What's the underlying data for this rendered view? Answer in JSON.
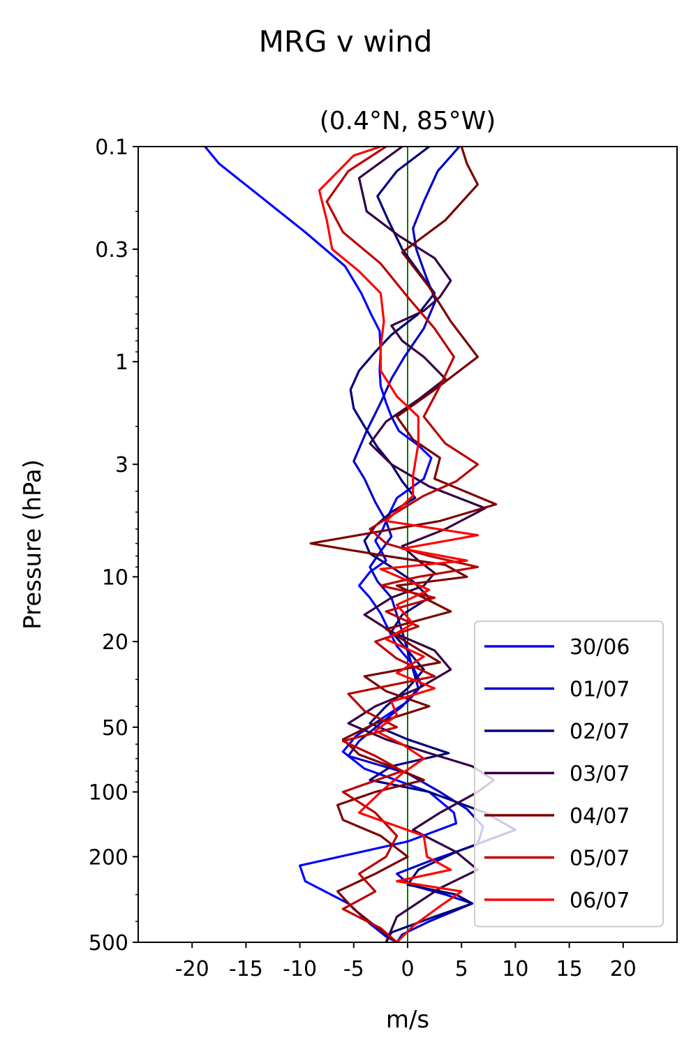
{
  "figure": {
    "suptitle": "MRG v wind"
  },
  "chart_data": {
    "type": "line",
    "title": "(0.4°N, 85°W)",
    "xlabel": "m/s",
    "ylabel": "Pressure (hPa)",
    "xlim": [
      -25,
      25
    ],
    "ylim": [
      500,
      0.1
    ],
    "yscale": "log",
    "xticks": [
      -20,
      -15,
      -10,
      -5,
      0,
      5,
      10,
      15,
      20
    ],
    "xtick_labels": [
      "-20",
      "-15",
      "-10",
      "-5",
      "0",
      "5",
      "10",
      "15",
      "20"
    ],
    "yticks": [
      0.1,
      0.3,
      1,
      3,
      10,
      20,
      50,
      100,
      200,
      500
    ],
    "ytick_labels": [
      "0.1",
      "0.3",
      "1",
      "3",
      "10",
      "20",
      "50",
      "100",
      "200",
      "500"
    ],
    "reference_line": {
      "x": 0,
      "color": "#007700"
    },
    "legend_position": "lower-right",
    "grid": false,
    "series": [
      {
        "name": "30/06",
        "color": "#0000ff",
        "x": [
          -18.8,
          -17.5,
          -13.7,
          -9.5,
          -5.8,
          -4.3,
          -3.4,
          -2.6,
          -2.5,
          -2.6,
          -2.5,
          -2.0,
          -1.5,
          -0.8,
          1.0,
          2.2,
          1.5,
          -1.0,
          -1.8,
          -2.3,
          -3.0,
          -2.5,
          -2.0,
          -3.5,
          -4.5,
          -3.5,
          -2.5,
          -1.8,
          -1.0,
          0.3,
          1.3,
          0.0,
          -2.5,
          -4.8,
          -6.0,
          -4.0,
          2.0,
          4.3,
          4.5,
          0.0,
          -10.0,
          -9.5,
          -5.5,
          -3.5,
          -2.0,
          -1.0
        ],
        "p": [
          0.1,
          0.12,
          0.17,
          0.25,
          0.36,
          0.48,
          0.6,
          0.72,
          0.9,
          1.1,
          1.3,
          1.55,
          1.8,
          2.1,
          2.45,
          2.8,
          3.5,
          4.3,
          5.2,
          6.0,
          6.8,
          7.5,
          8.4,
          9.5,
          11.0,
          12.5,
          14.8,
          17.5,
          21.0,
          25.0,
          32.0,
          38.0,
          46.0,
          55.0,
          65.0,
          78.0,
          100.0,
          125.0,
          140.0,
          170.0,
          220.0,
          260.0,
          330.0,
          410.0,
          470.0,
          500.0
        ]
      },
      {
        "name": "01/07",
        "color": "#0000cc",
        "x": [
          4.8,
          2.8,
          1.5,
          0.5,
          0.8,
          1.7,
          2.6,
          1.5,
          -0.3,
          -1.5,
          -2.5,
          -3.8,
          -5.0,
          -4.0,
          -3.0,
          -2.0,
          -1.5,
          -2.5,
          -3.5,
          -2.8,
          -1.5,
          -1.0,
          -0.5,
          0.0,
          0.5,
          1.0,
          -0.5,
          -2.5,
          -4.5,
          -5.5,
          0.0,
          3.0,
          5.5,
          7.0,
          6.5,
          2.0,
          -1.0,
          0.2,
          3.5,
          6.0,
          2.0,
          -0.5,
          -1.0
        ],
        "p": [
          0.1,
          0.13,
          0.18,
          0.24,
          0.3,
          0.4,
          0.52,
          0.7,
          0.95,
          1.2,
          1.55,
          2.1,
          2.9,
          3.5,
          4.5,
          5.5,
          6.5,
          7.6,
          9.0,
          10.5,
          12.5,
          15.0,
          18.0,
          22.0,
          27.0,
          33.0,
          40.0,
          48.0,
          58.0,
          68.0,
          82.0,
          100.0,
          120.0,
          145.0,
          175.0,
          210.0,
          240.0,
          270.0,
          300.0,
          330.0,
          400.0,
          460.0,
          500.0
        ]
      },
      {
        "name": "02/07",
        "color": "#00007a",
        "x": [
          2.0,
          -1.0,
          -2.8,
          -1.8,
          -0.5,
          1.0,
          2.5,
          1.0,
          -1.5,
          -3.0,
          -4.5,
          -5.3,
          -5.0,
          -4.0,
          -2.8,
          -1.5,
          -0.5,
          0.7,
          -1.5,
          -3.0,
          -4.0,
          -3.5,
          -1.5,
          0.5,
          2.0,
          -0.5,
          -1.5,
          0.0,
          1.5,
          0.0,
          -2.0,
          -3.5,
          0.0,
          3.8,
          -1.5,
          -3.5,
          2.0,
          7.2,
          10.0,
          4.5,
          1.0,
          0.0,
          4.5,
          6.0,
          2.5,
          -1.5,
          -2.0
        ],
        "p": [
          0.1,
          0.13,
          0.17,
          0.22,
          0.3,
          0.38,
          0.48,
          0.6,
          0.75,
          0.9,
          1.1,
          1.35,
          1.65,
          2.0,
          2.5,
          3.0,
          3.6,
          4.3,
          5.0,
          5.8,
          6.8,
          7.8,
          9.0,
          10.5,
          12.5,
          15.0,
          18.0,
          22.0,
          27.0,
          33.0,
          40.0,
          48.0,
          57.0,
          66.0,
          76.0,
          88.0,
          100.0,
          125.0,
          150.0,
          190.0,
          230.0,
          270.0,
          300.0,
          330.0,
          380.0,
          450.0,
          500.0
        ]
      },
      {
        "name": "03/07",
        "color": "#330044",
        "x": [
          -0.5,
          -4.5,
          -3.8,
          -0.8,
          2.5,
          4.0,
          3.0,
          1.5,
          -1.5,
          -0.5,
          1.5,
          3.5,
          1.0,
          -2.0,
          -3.5,
          -1.5,
          2.0,
          7.2,
          3.5,
          -0.5,
          1.0,
          2.5,
          1.5,
          -1.5,
          -4.0,
          -1.5,
          2.5,
          4.0,
          1.0,
          -3.0,
          -5.5,
          -2.0,
          2.0,
          6.0,
          8.0,
          6.5,
          3.0,
          0.5,
          4.5,
          6.5,
          3.0,
          -1.0,
          -2.0
        ],
        "p": [
          0.1,
          0.14,
          0.2,
          0.26,
          0.33,
          0.42,
          0.5,
          0.58,
          0.68,
          0.8,
          0.95,
          1.2,
          1.5,
          1.9,
          2.4,
          3.0,
          3.8,
          4.8,
          6.0,
          7.2,
          8.4,
          9.6,
          11.0,
          12.5,
          15.0,
          18.0,
          22.0,
          27.0,
          33.0,
          40.0,
          48.0,
          57.0,
          66.0,
          76.0,
          88.0,
          100.0,
          125.0,
          150.0,
          190.0,
          230.0,
          280.0,
          380.0,
          500.0
        ]
      },
      {
        "name": "04/07",
        "color": "#7a0000",
        "x": [
          5.0,
          5.5,
          6.5,
          3.5,
          -0.5,
          2.0,
          4.0,
          6.5,
          2.5,
          -1.0,
          0.5,
          3.0,
          2.5,
          8.2,
          3.0,
          -9.0,
          -2.0,
          3.5,
          5.5,
          -1.0,
          1.5,
          4.0,
          -2.0,
          0.5,
          3.0,
          -4.0,
          -2.0,
          2.0,
          -3.0,
          -6.0,
          -4.5,
          -1.0,
          1.5,
          -3.0,
          -6.5,
          -6.0,
          -2.5,
          0.0,
          -3.0,
          -6.5,
          -5.0,
          -3.0,
          -1.0
        ],
        "p": [
          0.1,
          0.12,
          0.15,
          0.22,
          0.31,
          0.45,
          0.65,
          0.95,
          1.35,
          1.8,
          2.3,
          2.8,
          3.5,
          4.6,
          5.5,
          7.0,
          8.0,
          8.8,
          10.0,
          11.0,
          12.5,
          14.5,
          17.5,
          21.0,
          25.0,
          29.0,
          34.0,
          40.0,
          48.0,
          57.0,
          67.0,
          78.0,
          88.0,
          100.0,
          115.0,
          135.0,
          160.0,
          200.0,
          240.0,
          290.0,
          350.0,
          420.0,
          500.0
        ]
      },
      {
        "name": "05/07",
        "color": "#bb0000",
        "x": [
          -2.0,
          -5.5,
          -7.5,
          -6.0,
          -2.5,
          0.0,
          2.5,
          4.3,
          3.0,
          1.5,
          3.5,
          6.5,
          4.5,
          1.5,
          -1.0,
          -3.5,
          -2.0,
          2.0,
          6.5,
          1.0,
          -2.5,
          2.5,
          -2.0,
          1.0,
          -3.0,
          -1.0,
          2.5,
          -5.5,
          -4.0,
          -1.0,
          -6.0,
          -3.0,
          -0.5,
          -6.0,
          -3.0,
          -1.0,
          -2.0,
          -4.5,
          -3.0,
          -6.0,
          -2.5,
          -1.0
        ],
        "p": [
          0.1,
          0.13,
          0.18,
          0.25,
          0.35,
          0.5,
          0.7,
          0.95,
          1.3,
          1.8,
          2.4,
          3.0,
          3.6,
          4.2,
          5.0,
          6.0,
          7.0,
          8.0,
          9.0,
          10.0,
          11.0,
          12.5,
          14.5,
          17.0,
          20.0,
          24.0,
          29.0,
          35.0,
          42.0,
          50.0,
          58.0,
          68.0,
          80.0,
          100.0,
          125.0,
          160.0,
          200.0,
          240.0,
          290.0,
          350.0,
          430.0,
          500.0
        ]
      },
      {
        "name": "06/07",
        "color": "#ff0000",
        "x": [
          -2.5,
          -5.0,
          -8.2,
          -7.5,
          -7.0,
          -4.5,
          -2.5,
          -2.2,
          -2.5,
          -2.5,
          -1.0,
          1.0,
          1.0,
          0.5,
          0.5,
          -2.0,
          6.5,
          -0.5,
          5.5,
          -2.5,
          2.0,
          -1.0,
          0.5,
          -2.0,
          1.5,
          -1.0,
          2.5,
          -1.5,
          -1.0,
          -3.0,
          -0.5,
          1.5,
          -0.5,
          -2.5,
          -4.5,
          1.5,
          1.8,
          4.0,
          -1.0,
          5.0,
          3.0,
          0.5,
          -1.0
        ],
        "p": [
          0.1,
          0.11,
          0.16,
          0.22,
          0.3,
          0.38,
          0.48,
          0.65,
          0.85,
          1.1,
          1.45,
          1.8,
          2.4,
          3.4,
          4.2,
          5.5,
          6.4,
          7.4,
          8.4,
          9.2,
          11.5,
          13.5,
          16.5,
          19.5,
          23.5,
          28.0,
          33.0,
          38.0,
          44.0,
          52.0,
          60.0,
          70.0,
          82.0,
          100.0,
          125.0,
          160.0,
          200.0,
          230.0,
          260.0,
          290.0,
          340.0,
          420.0,
          500.0
        ]
      }
    ]
  }
}
